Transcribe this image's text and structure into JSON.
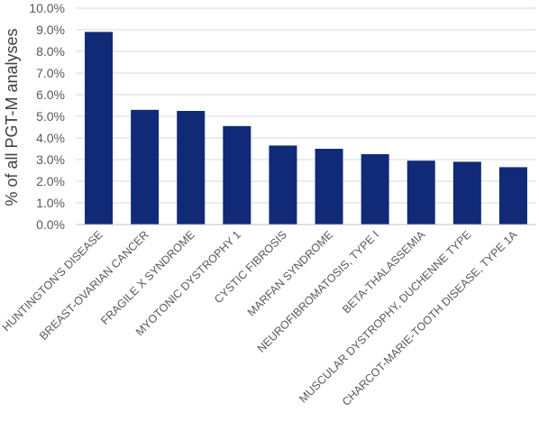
{
  "chart_data": {
    "type": "bar",
    "title": "",
    "xlabel": "",
    "ylabel": "% of all PGT-M analyses",
    "ylim": [
      0,
      10
    ],
    "ytick_step": 1,
    "ytick_labels": [
      "0.0%",
      "1.0%",
      "2.0%",
      "3.0%",
      "4.0%",
      "5.0%",
      "6.0%",
      "7.0%",
      "8.0%",
      "9.0%",
      "10.0%"
    ],
    "grid": true,
    "legend": "none",
    "bar_color": "#102A78",
    "categories": [
      "HUNTINGTON'S DISEASE",
      "BREAST-OVARIAN CANCER",
      "FRAGILE X SYNDROME",
      "MYOTONIC DYSTROPHY 1",
      "CYSTIC FIBROSIS",
      "MARFAN SYNDROME",
      "NEUROFIBROMATOSIS, TYPE I",
      "BETA-THALASSEMIA",
      "MUSCULAR DYSTROPHY, DUCHENNE TYPE",
      "CHARCOT-MARIE-TOOTH DISEASE,  TYPE 1A"
    ],
    "values": [
      8.9,
      5.3,
      5.25,
      4.55,
      3.65,
      3.5,
      3.25,
      2.95,
      2.9,
      2.65
    ]
  }
}
